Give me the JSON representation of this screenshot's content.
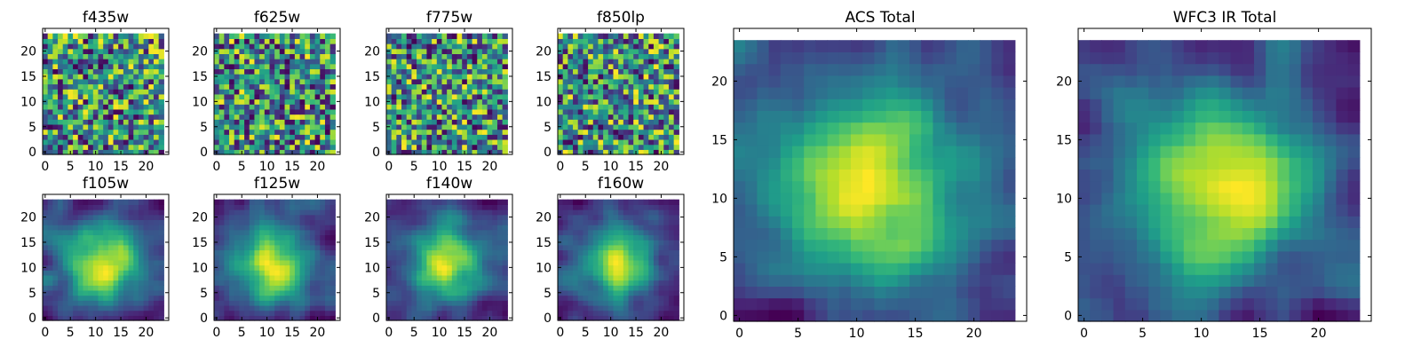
{
  "colormap": "viridis",
  "chart_data": [
    {
      "type": "heatmap",
      "title": "f435w",
      "pattern": "noise",
      "seed": 11,
      "grid": [
        24,
        24
      ],
      "xticks": [
        "0",
        "5",
        "10",
        "15",
        "20"
      ],
      "yticks": [
        "0",
        "5",
        "10",
        "15",
        "20"
      ]
    },
    {
      "type": "heatmap",
      "title": "f625w",
      "pattern": "noise",
      "seed": 23,
      "grid": [
        24,
        24
      ],
      "xticks": [
        "0",
        "5",
        "10",
        "15",
        "20"
      ],
      "yticks": [
        "0",
        "5",
        "10",
        "15",
        "20"
      ]
    },
    {
      "type": "heatmap",
      "title": "f775w",
      "pattern": "noise",
      "seed": 37,
      "grid": [
        24,
        24
      ],
      "xticks": [
        "0",
        "5",
        "10",
        "15",
        "20"
      ],
      "yticks": [
        "0",
        "5",
        "10",
        "15",
        "20"
      ]
    },
    {
      "type": "heatmap",
      "title": "f850lp",
      "pattern": "noise",
      "seed": 41,
      "grid": [
        24,
        24
      ],
      "xticks": [
        "0",
        "5",
        "10",
        "15",
        "20"
      ],
      "yticks": [
        "0",
        "5",
        "10",
        "15",
        "20"
      ]
    },
    {
      "type": "heatmap",
      "title": "f105w",
      "pattern": "smooth",
      "seed": 53,
      "grid": [
        24,
        24
      ],
      "xticks": [
        "0",
        "5",
        "10",
        "15",
        "20"
      ],
      "yticks": [
        "0",
        "5",
        "10",
        "15",
        "20"
      ]
    },
    {
      "type": "heatmap",
      "title": "f125w",
      "pattern": "smooth",
      "seed": 67,
      "grid": [
        24,
        24
      ],
      "xticks": [
        "0",
        "5",
        "10",
        "15",
        "20"
      ],
      "yticks": [
        "0",
        "5",
        "10",
        "15",
        "20"
      ]
    },
    {
      "type": "heatmap",
      "title": "f140w",
      "pattern": "smooth",
      "seed": 71,
      "grid": [
        24,
        24
      ],
      "xticks": [
        "0",
        "5",
        "10",
        "15",
        "20"
      ],
      "yticks": [
        "0",
        "5",
        "10",
        "15",
        "20"
      ]
    },
    {
      "type": "heatmap",
      "title": "f160w",
      "pattern": "smooth",
      "seed": 89,
      "grid": [
        24,
        24
      ],
      "xticks": [
        "0",
        "5",
        "10",
        "15",
        "20"
      ],
      "yticks": [
        "0",
        "5",
        "10",
        "15",
        "20"
      ]
    },
    {
      "type": "heatmap",
      "title": "ACS Total",
      "pattern": "smooth",
      "seed": 97,
      "grid": [
        24,
        24
      ],
      "xticks": [
        "0",
        "5",
        "10",
        "15",
        "20"
      ],
      "yticks": [
        "0",
        "5",
        "10",
        "15",
        "20"
      ]
    },
    {
      "type": "heatmap",
      "title": "WFC3 IR Total",
      "pattern": "smooth",
      "seed": 101,
      "grid": [
        24,
        24
      ],
      "xticks": [
        "0",
        "5",
        "10",
        "15",
        "20"
      ],
      "yticks": [
        "0",
        "5",
        "10",
        "15",
        "20"
      ]
    }
  ]
}
